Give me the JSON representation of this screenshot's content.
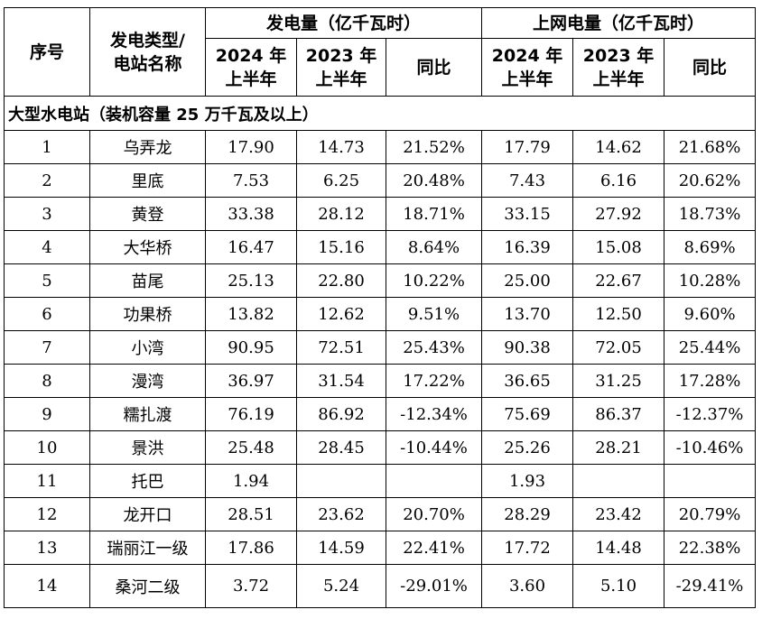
{
  "header": {
    "seq": "序号",
    "type_line1": "发电类型/",
    "type_line2": "电站名称",
    "gen_group": "发电量（亿千瓦时）",
    "grid_group": "上网电量（亿千瓦时）",
    "y2024_line1": "2024 年",
    "y2024_line2": "上半年",
    "y2023_line1": "2023 年",
    "y2023_line2": "上半年",
    "yoy": "同比"
  },
  "section_title": "大型水电站（装机容量 25 万千瓦及以上）",
  "rows": [
    {
      "no": "1",
      "name": "乌弄龙",
      "g24": "17.90",
      "g23": "14.73",
      "gy": "21.52%",
      "n24": "17.79",
      "n23": "14.62",
      "ny": "21.68%"
    },
    {
      "no": "2",
      "name": "里底",
      "g24": "7.53",
      "g23": "6.25",
      "gy": "20.48%",
      "n24": "7.43",
      "n23": "6.16",
      "ny": "20.62%"
    },
    {
      "no": "3",
      "name": "黄登",
      "g24": "33.38",
      "g23": "28.12",
      "gy": "18.71%",
      "n24": "33.15",
      "n23": "27.92",
      "ny": "18.73%"
    },
    {
      "no": "4",
      "name": "大华桥",
      "g24": "16.47",
      "g23": "15.16",
      "gy": "8.64%",
      "n24": "16.39",
      "n23": "15.08",
      "ny": "8.69%"
    },
    {
      "no": "5",
      "name": "苗尾",
      "g24": "25.13",
      "g23": "22.80",
      "gy": "10.22%",
      "n24": "25.00",
      "n23": "22.67",
      "ny": "10.28%"
    },
    {
      "no": "6",
      "name": "功果桥",
      "g24": "13.82",
      "g23": "12.62",
      "gy": "9.51%",
      "n24": "13.70",
      "n23": "12.50",
      "ny": "9.60%"
    },
    {
      "no": "7",
      "name": "小湾",
      "g24": "90.95",
      "g23": "72.51",
      "gy": "25.43%",
      "n24": "90.38",
      "n23": "72.05",
      "ny": "25.44%"
    },
    {
      "no": "8",
      "name": "漫湾",
      "g24": "36.97",
      "g23": "31.54",
      "gy": "17.22%",
      "n24": "36.65",
      "n23": "31.25",
      "ny": "17.28%"
    },
    {
      "no": "9",
      "name": "糯扎渡",
      "g24": "76.19",
      "g23": "86.92",
      "gy": "-12.34%",
      "n24": "75.69",
      "n23": "86.37",
      "ny": "-12.37%"
    },
    {
      "no": "10",
      "name": "景洪",
      "g24": "25.48",
      "g23": "28.45",
      "gy": "-10.44%",
      "n24": "25.26",
      "n23": "28.21",
      "ny": "-10.46%"
    },
    {
      "no": "11",
      "name": "托巴",
      "g24": "1.94",
      "g23": "",
      "gy": "",
      "n24": "1.93",
      "n23": "",
      "ny": ""
    },
    {
      "no": "12",
      "name": "龙开口",
      "g24": "28.51",
      "g23": "23.62",
      "gy": "20.70%",
      "n24": "28.29",
      "n23": "23.42",
      "ny": "20.79%"
    },
    {
      "no": "13",
      "name": "瑞丽江一级",
      "g24": "17.86",
      "g23": "14.59",
      "gy": "22.41%",
      "n24": "17.72",
      "n23": "14.48",
      "ny": "22.38%"
    },
    {
      "no": "14",
      "name": "桑河二级",
      "g24": "3.72",
      "g23": "5.24",
      "gy": "-29.01%",
      "n24": "3.60",
      "n23": "5.10",
      "ny": "-29.41%"
    }
  ]
}
